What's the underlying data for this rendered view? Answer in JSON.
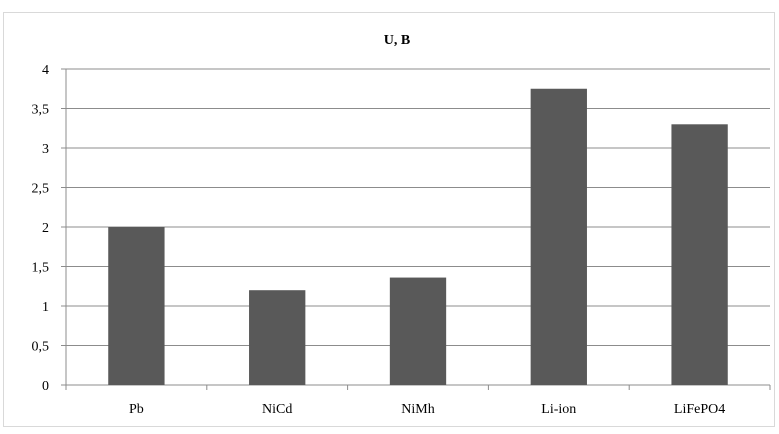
{
  "chart_data": {
    "type": "bar",
    "title": "U, B",
    "xlabel": "",
    "ylabel": "",
    "categories": [
      "Pb",
      "NiCd",
      "NiMh",
      "Li-ion",
      "LiFePO4"
    ],
    "values": [
      2.0,
      1.2,
      1.36,
      3.75,
      3.3
    ],
    "y_ticks": [
      "0",
      "0,5",
      "1",
      "1,5",
      "2",
      "2,5",
      "3",
      "3,5",
      "4"
    ],
    "ylim": [
      0,
      4
    ],
    "grid": true,
    "legend": "none",
    "bar_color": "#595959",
    "grid_color": "#8c8c8c"
  }
}
